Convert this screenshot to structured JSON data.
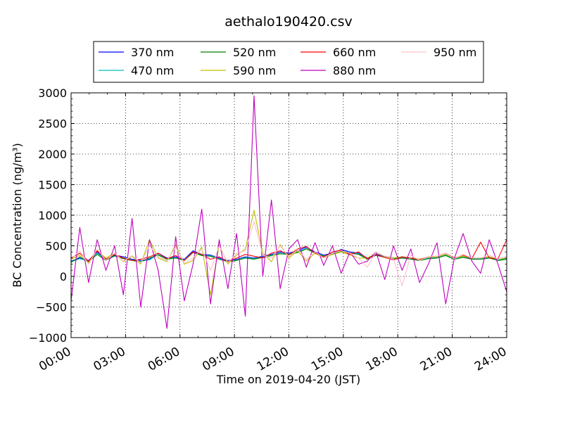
{
  "chart_data": {
    "type": "line",
    "title": "aethalo190420.csv",
    "xlabel": "Time on 2019-04-20 (JST)",
    "ylabel": "BC Concentration (ng/m³)",
    "xlim": [
      "00:00",
      "24:00"
    ],
    "ylim": [
      -1000,
      3000
    ],
    "xticks": [
      "00:00",
      "03:00",
      "06:00",
      "09:00",
      "12:00",
      "15:00",
      "18:00",
      "21:00",
      "24:00"
    ],
    "yticks": [
      -1000,
      -500,
      0,
      500,
      1000,
      1500,
      2000,
      2500,
      3000
    ],
    "grid": true,
    "legend_position": "top",
    "series": [
      {
        "name": "370 nm",
        "color": "#0000ff",
        "values": [
          250,
          300,
          260,
          400,
          280,
          350,
          320,
          280,
          260,
          280,
          380,
          300,
          320,
          280,
          420,
          360,
          350,
          300,
          260,
          280,
          320,
          300,
          330,
          360,
          400,
          380,
          420,
          480,
          400,
          350,
          380,
          440,
          400,
          380,
          300,
          360,
          330,
          300,
          320,
          300,
          280,
          310,
          320,
          360,
          300,
          330,
          300,
          300,
          320,
          280,
          300
        ]
      },
      {
        "name": "470 nm",
        "color": "#00bfbf",
        "values": [
          240,
          290,
          250,
          380,
          270,
          330,
          300,
          270,
          250,
          270,
          360,
          290,
          310,
          270,
          400,
          350,
          340,
          290,
          250,
          270,
          310,
          290,
          320,
          350,
          380,
          370,
          400,
          460,
          390,
          340,
          370,
          420,
          390,
          370,
          290,
          340,
          320,
          290,
          310,
          290,
          270,
          300,
          310,
          350,
          290,
          320,
          290,
          290,
          310,
          270,
          290
        ]
      },
      {
        "name": "520 nm",
        "color": "#008000",
        "values": [
          230,
          320,
          240,
          360,
          260,
          340,
          290,
          260,
          240,
          300,
          350,
          280,
          300,
          260,
          390,
          340,
          330,
          280,
          240,
          260,
          300,
          280,
          310,
          340,
          370,
          360,
          390,
          450,
          380,
          330,
          360,
          410,
          380,
          360,
          280,
          350,
          310,
          280,
          300,
          280,
          260,
          290,
          300,
          340,
          280,
          310,
          280,
          280,
          300,
          260,
          280
        ]
      },
      {
        "name": "590 nm",
        "color": "#bfbf00",
        "values": [
          280,
          350,
          220,
          420,
          300,
          380,
          240,
          330,
          200,
          600,
          300,
          240,
          520,
          200,
          260,
          480,
          -300,
          520,
          200,
          350,
          450,
          1080,
          380,
          240,
          520,
          300,
          420,
          250,
          380,
          300,
          360,
          400,
          350,
          300,
          300,
          380,
          330,
          300,
          320,
          300,
          280,
          310,
          320,
          360,
          300,
          330,
          300,
          300,
          320,
          280,
          300
        ]
      },
      {
        "name": "660 nm",
        "color": "#ff0000",
        "values": [
          300,
          380,
          250,
          420,
          280,
          360,
          300,
          260,
          280,
          320,
          380,
          290,
          340,
          260,
          400,
          360,
          280,
          320,
          240,
          300,
          360,
          330,
          300,
          380,
          420,
          350,
          450,
          490,
          380,
          320,
          400,
          430,
          360,
          400,
          290,
          350,
          310,
          270,
          320,
          300,
          270,
          320,
          330,
          380,
          300,
          350,
          290,
          560,
          300,
          290,
          600
        ]
      },
      {
        "name": "880 nm",
        "color": "#bf00bf",
        "values": [
          -400,
          800,
          -100,
          600,
          100,
          500,
          -300,
          950,
          -500,
          600,
          100,
          -850,
          650,
          -400,
          200,
          1100,
          -450,
          600,
          -200,
          700,
          -650,
          2950,
          0,
          1250,
          -200,
          450,
          600,
          150,
          550,
          180,
          500,
          50,
          400,
          200,
          250,
          400,
          -50,
          500,
          100,
          450,
          -100,
          200,
          550,
          -450,
          300,
          700,
          250,
          50,
          600,
          200,
          -250
        ]
      },
      {
        "name": "950 nm",
        "color": "#ffc0cb",
        "values": [
          280,
          420,
          200,
          450,
          260,
          380,
          250,
          340,
          220,
          500,
          320,
          260,
          480,
          220,
          300,
          450,
          100,
          500,
          220,
          380,
          420,
          900,
          350,
          300,
          500,
          320,
          440,
          280,
          400,
          300,
          380,
          420,
          380,
          300,
          150,
          400,
          330,
          280,
          -150,
          350,
          260,
          320,
          330,
          380,
          290,
          360,
          300,
          300,
          350,
          280,
          330
        ]
      }
    ]
  }
}
